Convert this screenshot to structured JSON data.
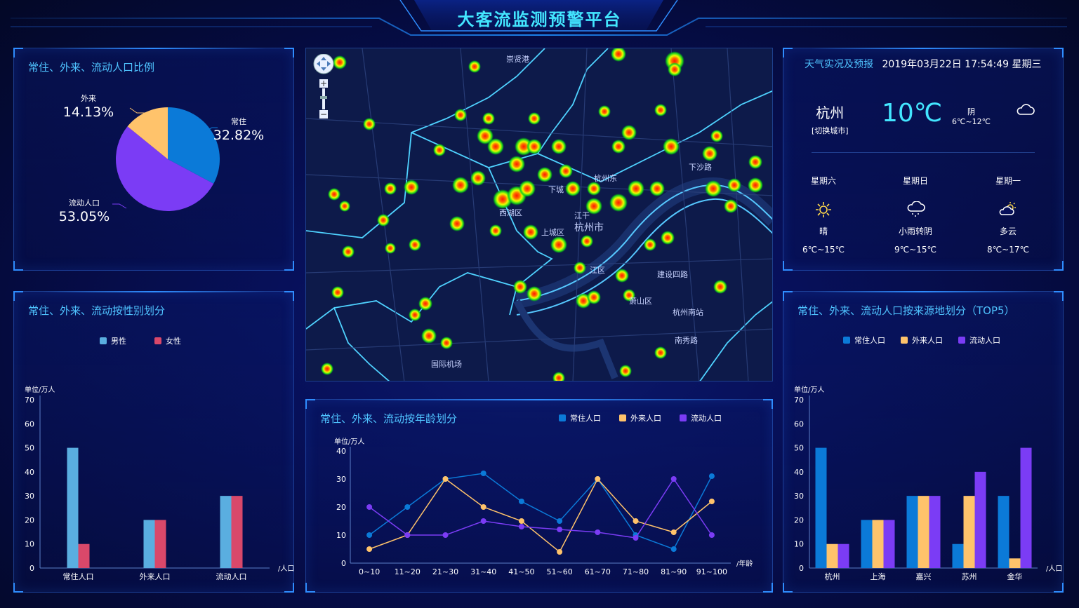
{
  "title": "大客流监测预警平台",
  "colors": {
    "resident": "#0b7ad8",
    "external": "#ffc36b",
    "floating": "#7b3cf5",
    "male": "#5aaee0",
    "female": "#d9486a",
    "accent": "#4fc3ff"
  },
  "pie_panel": {
    "title": "常住、外来、流动人口比例",
    "labels": {
      "resident_name": "常住",
      "resident_pct": "32.82%",
      "external_name": "外来",
      "external_pct": "14.13%",
      "floating_name": "流动人口",
      "floating_pct": "53.05%"
    }
  },
  "gender_panel": {
    "title": "常住、外来、流动按性别划分",
    "legend": [
      "男性",
      "女性"
    ],
    "unit": "单位/万人",
    "x_unit": "/人口"
  },
  "weather": {
    "label": "天气实况及预报",
    "datetime": "2019年03月22日  17:54:49  星期三",
    "city": "杭州",
    "switch_city": "[切换城市]",
    "temperature": "10℃",
    "condition": "阴",
    "range": "6℃~12℃",
    "icon": "cloud-icon",
    "forecast": [
      {
        "day": "星期六",
        "icon": "sun-icon",
        "cond": "晴",
        "range": "6℃~15℃"
      },
      {
        "day": "星期日",
        "icon": "rain-cloud-icon",
        "cond": "小雨转阴",
        "range": "9℃~15℃"
      },
      {
        "day": "星期一",
        "icon": "partly-cloudy-icon",
        "cond": "多云",
        "range": "8℃~17℃"
      }
    ]
  },
  "origin_panel": {
    "title": "常住、外来、流动人口按来源地划分（TOP5）",
    "legend": [
      "常住人口",
      "外来人口",
      "流动人口"
    ],
    "unit": "单位/万人",
    "x_unit": "/人口"
  },
  "age_panel": {
    "title": "常住、外来、流动按年龄划分",
    "legend": [
      "常住人口",
      "外来人口",
      "流动人口"
    ],
    "unit": "单位/万人",
    "x_unit": "/年龄"
  },
  "map": {
    "labels": {
      "l1": "崇贤港",
      "l2": "杭州东",
      "l3": "下城",
      "l4": "西湖区",
      "l5": "江干",
      "l6": "杭州市",
      "l7": "上城区",
      "l8": "江区",
      "l9": "萧山区",
      "l10": "杭州南站",
      "l11": "南秀路",
      "l12": "下沙路",
      "l13": "建设四路",
      "l14": "国际机场"
    },
    "zoom_in": "+",
    "zoom_out": "−"
  },
  "chart_data": [
    {
      "type": "pie",
      "title": "常住、外来、流动人口比例",
      "categories": [
        "常住",
        "外来",
        "流动人口"
      ],
      "values": [
        32.82,
        14.13,
        53.05
      ]
    },
    {
      "type": "bar",
      "title": "常住、外来、流动按性别划分",
      "categories": [
        "常住人口",
        "外来人口",
        "流动人口"
      ],
      "series": [
        {
          "name": "男性",
          "values": [
            50,
            20,
            30
          ]
        },
        {
          "name": "女性",
          "values": [
            10,
            20,
            30
          ]
        }
      ],
      "ylabel": "单位/万人",
      "xlabel": "/人口",
      "ylim": [
        0,
        70
      ],
      "yticks": [
        0,
        10,
        20,
        30,
        40,
        50,
        60,
        70
      ]
    },
    {
      "type": "bar",
      "title": "常住、外来、流动人口按来源地划分（TOP5）",
      "categories": [
        "杭州",
        "上海",
        "嘉兴",
        "苏州",
        "金华"
      ],
      "series": [
        {
          "name": "常住人口",
          "values": [
            50,
            20,
            30,
            10,
            30
          ]
        },
        {
          "name": "外来人口",
          "values": [
            10,
            20,
            30,
            30,
            4
          ]
        },
        {
          "name": "流动人口",
          "values": [
            10,
            20,
            30,
            40,
            50
          ]
        }
      ],
      "ylabel": "单位/万人",
      "xlabel": "/人口",
      "ylim": [
        0,
        70
      ],
      "yticks": [
        0,
        10,
        20,
        30,
        40,
        50,
        60,
        70
      ]
    },
    {
      "type": "line",
      "title": "常住、外来、流动按年龄划分",
      "categories": [
        "0~10",
        "11~20",
        "21~30",
        "31~40",
        "41~50",
        "51~60",
        "61~70",
        "71~80",
        "81~90",
        "91~100"
      ],
      "series": [
        {
          "name": "常住人口",
          "values": [
            10,
            20,
            30,
            32,
            22,
            15,
            30,
            10,
            5,
            31
          ]
        },
        {
          "name": "外来人口",
          "values": [
            5,
            10,
            30,
            20,
            15,
            4,
            30,
            15,
            11,
            22
          ]
        },
        {
          "name": "流动人口",
          "values": [
            20,
            10,
            10,
            15,
            13,
            12,
            11,
            9,
            30,
            10
          ]
        }
      ],
      "ylabel": "单位/万人",
      "xlabel": "/年龄",
      "ylim": [
        0,
        40
      ],
      "yticks": [
        0,
        10,
        20,
        30,
        40
      ]
    }
  ]
}
